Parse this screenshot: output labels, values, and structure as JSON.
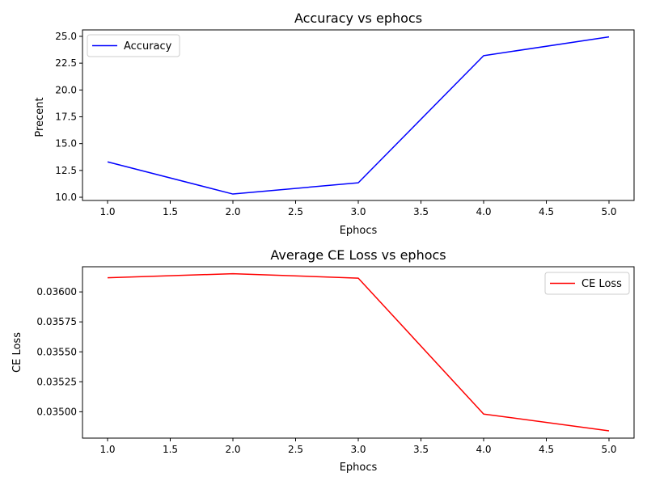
{
  "chart_data": [
    {
      "type": "line",
      "title": "Accuracy vs ephocs",
      "xlabel": "Ephocs",
      "ylabel": "Precent",
      "x": [
        1,
        2,
        3,
        4,
        5
      ],
      "series": [
        {
          "name": "Accuracy",
          "color": "#0000ff",
          "values": [
            13.3,
            10.3,
            11.35,
            23.2,
            24.95
          ]
        }
      ],
      "xlim": [
        0.8,
        5.2
      ],
      "ylim": [
        9.7,
        25.6
      ],
      "xticks": [
        1.0,
        1.5,
        2.0,
        2.5,
        3.0,
        3.5,
        4.0,
        4.5,
        5.0
      ],
      "xtick_labels": [
        "1.0",
        "1.5",
        "2.0",
        "2.5",
        "3.0",
        "3.5",
        "4.0",
        "4.5",
        "5.0"
      ],
      "yticks": [
        10.0,
        12.5,
        15.0,
        17.5,
        20.0,
        22.5,
        25.0
      ],
      "ytick_labels": [
        "10.0",
        "12.5",
        "15.0",
        "17.5",
        "20.0",
        "22.5",
        "25.0"
      ],
      "legend_loc": "upper-left",
      "grid": false
    },
    {
      "type": "line",
      "title": "Average CE Loss vs ephocs",
      "xlabel": "Ephocs",
      "ylabel": "CE Loss",
      "x": [
        1,
        2,
        3,
        4,
        5
      ],
      "series": [
        {
          "name": "CE Loss",
          "color": "#ff0000",
          "values": [
            0.036118,
            0.036152,
            0.036115,
            0.034981,
            0.034841
          ]
        }
      ],
      "xlim": [
        0.8,
        5.2
      ],
      "ylim": [
        0.03478,
        0.03621
      ],
      "xticks": [
        1.0,
        1.5,
        2.0,
        2.5,
        3.0,
        3.5,
        4.0,
        4.5,
        5.0
      ],
      "xtick_labels": [
        "1.0",
        "1.5",
        "2.0",
        "2.5",
        "3.0",
        "3.5",
        "4.0",
        "4.5",
        "5.0"
      ],
      "yticks": [
        0.035,
        0.03525,
        0.0355,
        0.03575,
        0.036
      ],
      "ytick_labels": [
        "0.03500",
        "0.03525",
        "0.03550",
        "0.03575",
        "0.03600"
      ],
      "legend_loc": "upper-right",
      "grid": false
    }
  ]
}
